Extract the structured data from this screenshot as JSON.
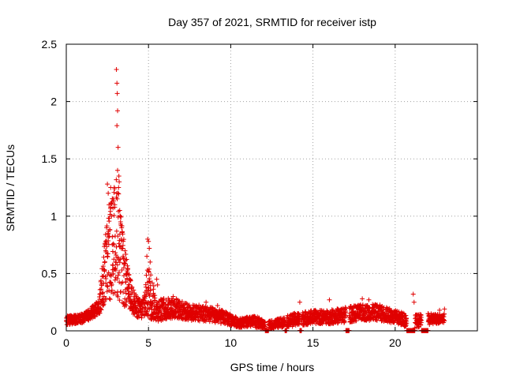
{
  "chart_data": {
    "type": "scatter",
    "title": "Day 357 of 2021, SRMTID for receiver istp",
    "xlabel": "GPS time / hours",
    "ylabel": "SRMTID / TECUs",
    "xlim": [
      0,
      25
    ],
    "ylim": [
      0,
      2.5
    ],
    "x_ticks": [
      0,
      5,
      10,
      15,
      20
    ],
    "x_tick_labels": [
      "0",
      "5",
      "10",
      "15",
      "20"
    ],
    "y_ticks": [
      0,
      0.5,
      1,
      1.5,
      2,
      2.5
    ],
    "y_tick_labels": [
      "0",
      "0.5",
      "1",
      "1.5",
      "2",
      "2.5"
    ],
    "grid": true,
    "marker": "+",
    "series_color": "#e00000",
    "series": [
      {
        "name": "SRMTID",
        "profile": [
          [
            0.0,
            0.09,
            0.04
          ],
          [
            0.5,
            0.1,
            0.04
          ],
          [
            1.0,
            0.11,
            0.04
          ],
          [
            1.5,
            0.15,
            0.05
          ],
          [
            2.0,
            0.22,
            0.08
          ],
          [
            2.4,
            0.55,
            0.35
          ],
          [
            2.8,
            0.75,
            0.45
          ],
          [
            3.1,
            0.85,
            0.55
          ],
          [
            3.4,
            0.55,
            0.35
          ],
          [
            3.8,
            0.35,
            0.15
          ],
          [
            4.2,
            0.22,
            0.1
          ],
          [
            4.6,
            0.18,
            0.08
          ],
          [
            5.0,
            0.35,
            0.25
          ],
          [
            5.5,
            0.18,
            0.1
          ],
          [
            6.5,
            0.2,
            0.09
          ],
          [
            7.5,
            0.16,
            0.07
          ],
          [
            8.5,
            0.15,
            0.07
          ],
          [
            9.5,
            0.12,
            0.06
          ],
          [
            10.5,
            0.07,
            0.04
          ],
          [
            11.5,
            0.08,
            0.05
          ],
          [
            12.2,
            0.04,
            0.04
          ],
          [
            13.0,
            0.07,
            0.04
          ],
          [
            14.0,
            0.1,
            0.06
          ],
          [
            15.0,
            0.12,
            0.06
          ],
          [
            16.0,
            0.12,
            0.06
          ],
          [
            17.0,
            0.14,
            0.07
          ],
          [
            18.0,
            0.16,
            0.07
          ],
          [
            19.0,
            0.16,
            0.07
          ],
          [
            20.0,
            0.12,
            0.06
          ],
          [
            21.0,
            0.08,
            0.06
          ],
          [
            22.0,
            0.1,
            0.05
          ],
          [
            23.0,
            0.11,
            0.04
          ]
        ],
        "gaps": [
          [
            12.1,
            12.3
          ],
          [
            13.3,
            13.4
          ],
          [
            14.2,
            14.3
          ],
          [
            17.0,
            17.2
          ],
          [
            20.7,
            21.2
          ],
          [
            21.6,
            22.0
          ]
        ],
        "x_range": [
          0.0,
          23.0
        ],
        "points_per_hour": 120,
        "highlights": [
          [
            3.05,
            2.28
          ],
          [
            3.08,
            2.16
          ],
          [
            3.1,
            2.07
          ],
          [
            3.12,
            1.92
          ],
          [
            3.08,
            1.79
          ],
          [
            3.15,
            1.6
          ],
          [
            3.12,
            1.4
          ],
          [
            3.2,
            1.35
          ],
          [
            3.22,
            1.3
          ],
          [
            3.18,
            1.25
          ],
          [
            2.5,
            1.28
          ],
          [
            2.55,
            1.2
          ],
          [
            2.7,
            1.25
          ],
          [
            2.85,
            1.15
          ],
          [
            2.95,
            1.1
          ],
          [
            2.6,
            1.1
          ],
          [
            3.25,
            1.05
          ],
          [
            3.3,
            0.95
          ],
          [
            2.75,
            1.0
          ],
          [
            2.45,
            0.9
          ],
          [
            2.55,
            0.85
          ],
          [
            2.65,
            0.88
          ],
          [
            2.8,
            0.82
          ],
          [
            3.35,
            0.8
          ],
          [
            2.4,
            0.7
          ],
          [
            2.9,
            0.75
          ],
          [
            3.45,
            0.65
          ],
          [
            3.0,
            0.6
          ],
          [
            2.5,
            0.65
          ],
          [
            3.5,
            0.55
          ],
          [
            4.95,
            0.8
          ],
          [
            5.0,
            0.78
          ],
          [
            5.05,
            0.72
          ],
          [
            4.9,
            0.65
          ],
          [
            5.1,
            0.6
          ],
          [
            5.0,
            0.52
          ],
          [
            5.5,
            0.45
          ],
          [
            5.55,
            0.4
          ],
          [
            3.7,
            0.45
          ],
          [
            3.8,
            0.4
          ],
          [
            6.5,
            0.3
          ],
          [
            6.7,
            0.28
          ],
          [
            8.5,
            0.25
          ],
          [
            9.2,
            0.22
          ],
          [
            14.2,
            0.25
          ],
          [
            16.0,
            0.27
          ],
          [
            18.0,
            0.28
          ],
          [
            18.4,
            0.27
          ],
          [
            21.1,
            0.32
          ],
          [
            21.15,
            0.25
          ],
          [
            22.7,
            0.18
          ],
          [
            23.0,
            0.19
          ],
          [
            0.02,
            0.08
          ],
          [
            2.3,
            0.3
          ],
          [
            4.0,
            0.38
          ]
        ]
      }
    ]
  }
}
